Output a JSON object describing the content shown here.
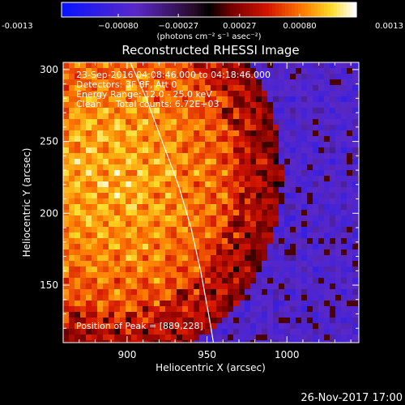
{
  "chart_data": {
    "type": "heatmap",
    "title": "Reconstructed RHESSI Image",
    "xlabel": "Heliocentric X (arcsec)",
    "ylabel": "Heliocentric Y (arcsec)",
    "xlim": [
      860,
      1045
    ],
    "ylim": [
      110,
      305
    ],
    "x_ticks": [
      "900",
      "950",
      "1000"
    ],
    "y_ticks": [
      "150",
      "200",
      "250",
      "300"
    ],
    "colorbar": {
      "min": -0.0013,
      "max": 0.0013,
      "tick_values": [
        -0.0013,
        -0.0008,
        -0.00027,
        0.00027,
        0.0008,
        0.0013
      ],
      "tick_labels": [
        "-0.0013",
        "−0.00080",
        "−0.00027",
        "0.00027",
        "0.00080",
        "0.0013"
      ],
      "unit_label": "(photons cm⁻² s⁻¹ asec⁻²)",
      "colormap": "rainbow-to-heat"
    },
    "info_lines": [
      "23-Sep-2016 04:08:46.000 to 04:18:46.000",
      "Detectors: 3F 8F, Att 0",
      "Energy Range: 12.0 - 25.0 keV",
      "Clean     Total counts: 6.72E+03"
    ],
    "peak_label": "Position of Peak = [889,228]",
    "peak_position": [
      889,
      228
    ],
    "limb_curve": [
      [
        902,
        305
      ],
      [
        912,
        280
      ],
      [
        922,
        250
      ],
      [
        932,
        220
      ],
      [
        940,
        190
      ],
      [
        946,
        160
      ],
      [
        951,
        130
      ],
      [
        954,
        110
      ]
    ],
    "grid": false
  },
  "footer": {
    "date": "26-Nov-2017 17:00"
  },
  "colors": {
    "background": "#000000",
    "foreground": "#ffffff",
    "limb": "#ffffff"
  }
}
